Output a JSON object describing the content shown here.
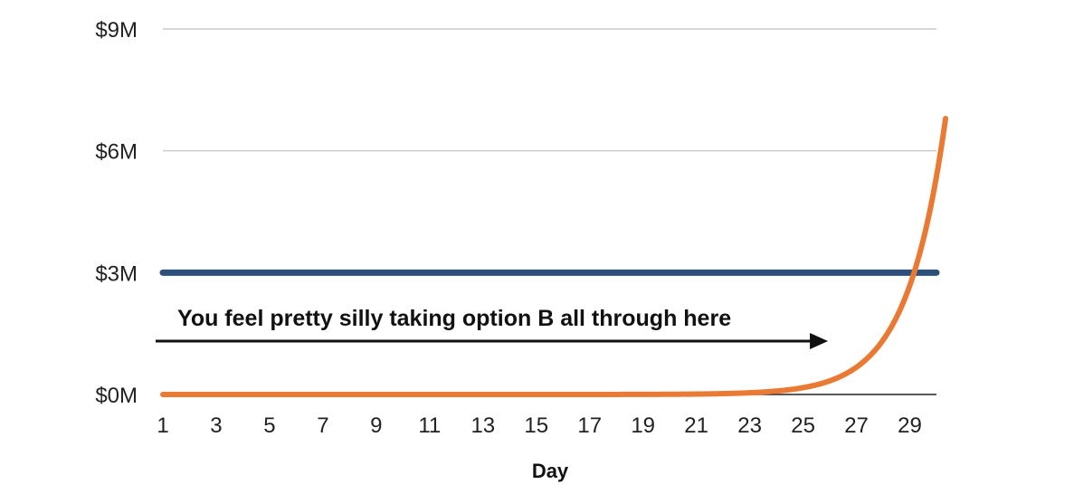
{
  "chart_data": {
    "type": "line",
    "xlabel": "Day",
    "ylabel": "",
    "title": "",
    "x": [
      1,
      2,
      3,
      4,
      5,
      6,
      7,
      8,
      9,
      10,
      11,
      12,
      13,
      14,
      15,
      16,
      17,
      18,
      19,
      20,
      21,
      22,
      23,
      24,
      25,
      26,
      27,
      28,
      29,
      30
    ],
    "xticks": [
      "1",
      "3",
      "5",
      "7",
      "9",
      "11",
      "13",
      "15",
      "17",
      "19",
      "21",
      "23",
      "25",
      "27",
      "29"
    ],
    "yticks": [
      "$0M",
      "$3M",
      "$6M",
      "$9M"
    ],
    "ytick_values": [
      0,
      3,
      6,
      9
    ],
    "ylim": [
      0,
      9
    ],
    "xlim": [
      1,
      30
    ],
    "grid": true,
    "series": [
      {
        "values": [
          1e-08,
          2e-08,
          4e-08,
          8e-08,
          1.6e-07,
          3.2e-07,
          6.4e-07,
          1.28e-06,
          2.56e-06,
          5.12e-06,
          1.024e-05,
          2.048e-05,
          4.096e-05,
          8.192e-05,
          0.00016384,
          0.00032768,
          0.00065536,
          0.00131072,
          0.00262144,
          0.00524288,
          0.01048576,
          0.02097152,
          0.04194304,
          0.08388608,
          0.16777216,
          0.33554432,
          0.67108864,
          1.34217728,
          2.68435456,
          5.36870912
        ],
        "color": "#EA7A33"
      },
      {
        "values": [
          3,
          3,
          3,
          3,
          3,
          3,
          3,
          3,
          3,
          3,
          3,
          3,
          3,
          3,
          3,
          3,
          3,
          3,
          3,
          3,
          3,
          3,
          3,
          3,
          3,
          3,
          3,
          3,
          3,
          3
        ],
        "color": "#2C4F7C"
      }
    ],
    "annotations": [
      {
        "text": "You feel pretty silly taking option B all through here",
        "x_start": 1,
        "x_end": 26
      }
    ]
  }
}
